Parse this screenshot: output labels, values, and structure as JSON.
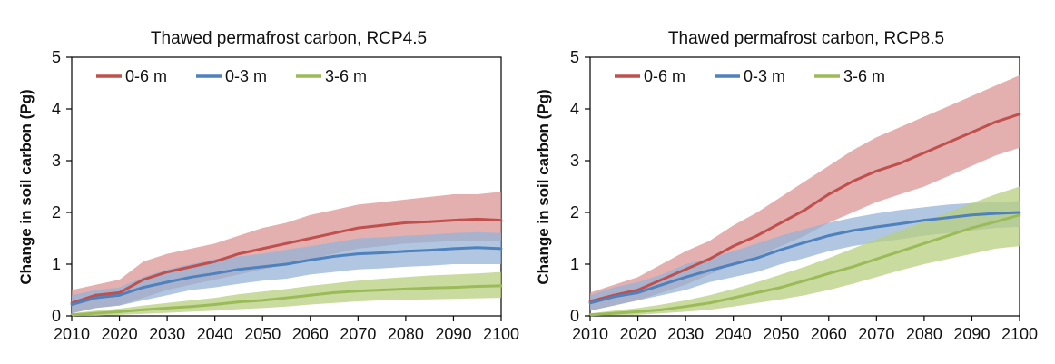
{
  "chart_data": [
    {
      "type": "line",
      "title": "Thawed permafrost carbon, RCP4.5",
      "xlabel": "",
      "ylabel": "Change in soil carbon (Pg)",
      "xlim": [
        2010,
        2100
      ],
      "ylim": [
        0,
        5
      ],
      "xticks": [
        "2010",
        "2020",
        "2030",
        "2040",
        "2050",
        "2060",
        "2070",
        "2080",
        "2090",
        "2100"
      ],
      "yticks": [
        "0",
        "1",
        "2",
        "3",
        "4",
        "5"
      ],
      "grid": false,
      "legend_position": "top-left",
      "series": [
        {
          "name": "0-6 m",
          "color": "#c0504d",
          "band_color": "#d99594",
          "x": [
            2010,
            2015,
            2020,
            2025,
            2030,
            2035,
            2040,
            2045,
            2050,
            2055,
            2060,
            2065,
            2070,
            2075,
            2080,
            2085,
            2090,
            2095,
            2100
          ],
          "values": [
            0.25,
            0.4,
            0.45,
            0.7,
            0.85,
            0.95,
            1.05,
            1.2,
            1.3,
            1.4,
            1.5,
            1.6,
            1.7,
            1.75,
            1.8,
            1.82,
            1.85,
            1.87,
            1.85
          ],
          "lower": [
            0.05,
            0.15,
            0.2,
            0.35,
            0.5,
            0.6,
            0.7,
            0.8,
            0.9,
            1.0,
            1.1,
            1.2,
            1.3,
            1.35,
            1.4,
            1.42,
            1.45,
            1.45,
            1.45
          ],
          "upper": [
            0.5,
            0.6,
            0.7,
            1.05,
            1.2,
            1.3,
            1.4,
            1.55,
            1.7,
            1.8,
            1.95,
            2.05,
            2.15,
            2.2,
            2.25,
            2.3,
            2.35,
            2.35,
            2.4
          ]
        },
        {
          "name": "0-3 m",
          "color": "#4f81bd",
          "band_color": "#95b3d7",
          "x": [
            2010,
            2015,
            2020,
            2025,
            2030,
            2035,
            2040,
            2045,
            2050,
            2055,
            2060,
            2065,
            2070,
            2075,
            2080,
            2085,
            2090,
            2095,
            2100
          ],
          "values": [
            0.22,
            0.35,
            0.4,
            0.55,
            0.65,
            0.75,
            0.82,
            0.9,
            0.95,
            1.0,
            1.08,
            1.15,
            1.2,
            1.22,
            1.25,
            1.27,
            1.3,
            1.32,
            1.3
          ],
          "lower": [
            0.05,
            0.15,
            0.2,
            0.3,
            0.4,
            0.5,
            0.55,
            0.62,
            0.68,
            0.72,
            0.8,
            0.85,
            0.9,
            0.92,
            0.95,
            0.97,
            1.0,
            1.0,
            1.0
          ],
          "upper": [
            0.4,
            0.5,
            0.55,
            0.75,
            0.9,
            1.0,
            1.1,
            1.15,
            1.2,
            1.28,
            1.35,
            1.42,
            1.5,
            1.52,
            1.55,
            1.57,
            1.6,
            1.62,
            1.6
          ]
        },
        {
          "name": "3-6 m",
          "color": "#9bbb59",
          "band_color": "#b8cf7f",
          "x": [
            2010,
            2015,
            2020,
            2025,
            2030,
            2035,
            2040,
            2045,
            2050,
            2055,
            2060,
            2065,
            2070,
            2075,
            2080,
            2085,
            2090,
            2095,
            2100
          ],
          "values": [
            0.02,
            0.05,
            0.08,
            0.12,
            0.15,
            0.18,
            0.22,
            0.27,
            0.3,
            0.35,
            0.4,
            0.45,
            0.48,
            0.5,
            0.52,
            0.54,
            0.55,
            0.57,
            0.58
          ],
          "lower": [
            0.0,
            0.0,
            0.02,
            0.04,
            0.06,
            0.08,
            0.1,
            0.13,
            0.15,
            0.18,
            0.22,
            0.25,
            0.28,
            0.3,
            0.31,
            0.32,
            0.33,
            0.34,
            0.35
          ],
          "upper": [
            0.05,
            0.1,
            0.14,
            0.2,
            0.25,
            0.3,
            0.35,
            0.42,
            0.47,
            0.52,
            0.58,
            0.63,
            0.68,
            0.72,
            0.75,
            0.78,
            0.8,
            0.82,
            0.85
          ]
        }
      ]
    },
    {
      "type": "line",
      "title": "Thawed permafrost carbon, RCP8.5",
      "xlabel": "",
      "ylabel": "Change in soil carbon (Pg)",
      "xlim": [
        2010,
        2100
      ],
      "ylim": [
        0,
        5
      ],
      "xticks": [
        "2010",
        "2020",
        "2030",
        "2040",
        "2050",
        "2060",
        "2070",
        "2080",
        "2090",
        "2100"
      ],
      "yticks": [
        "0",
        "1",
        "2",
        "3",
        "4",
        "5"
      ],
      "grid": false,
      "legend_position": "top-left",
      "series": [
        {
          "name": "0-6 m",
          "color": "#c0504d",
          "band_color": "#d99594",
          "x": [
            2010,
            2015,
            2020,
            2025,
            2030,
            2035,
            2040,
            2045,
            2050,
            2055,
            2060,
            2065,
            2070,
            2075,
            2080,
            2085,
            2090,
            2095,
            2100
          ],
          "values": [
            0.28,
            0.4,
            0.5,
            0.7,
            0.9,
            1.1,
            1.35,
            1.55,
            1.8,
            2.05,
            2.35,
            2.6,
            2.8,
            2.95,
            3.15,
            3.35,
            3.55,
            3.75,
            3.9
          ],
          "lower": [
            0.1,
            0.2,
            0.3,
            0.45,
            0.6,
            0.8,
            1.0,
            1.15,
            1.35,
            1.55,
            1.8,
            2.0,
            2.2,
            2.35,
            2.5,
            2.7,
            2.9,
            3.1,
            3.25
          ],
          "upper": [
            0.45,
            0.6,
            0.75,
            1.0,
            1.25,
            1.45,
            1.75,
            2.0,
            2.3,
            2.6,
            2.9,
            3.2,
            3.45,
            3.65,
            3.85,
            4.05,
            4.25,
            4.45,
            4.65
          ]
        },
        {
          "name": "0-3 m",
          "color": "#4f81bd",
          "band_color": "#95b3d7",
          "x": [
            2010,
            2015,
            2020,
            2025,
            2030,
            2035,
            2040,
            2045,
            2050,
            2055,
            2060,
            2065,
            2070,
            2075,
            2080,
            2085,
            2090,
            2095,
            2100
          ],
          "values": [
            0.25,
            0.37,
            0.45,
            0.6,
            0.75,
            0.88,
            1.0,
            1.12,
            1.28,
            1.42,
            1.55,
            1.65,
            1.72,
            1.78,
            1.85,
            1.9,
            1.95,
            1.98,
            2.0
          ],
          "lower": [
            0.1,
            0.2,
            0.3,
            0.4,
            0.5,
            0.65,
            0.75,
            0.85,
            1.0,
            1.12,
            1.25,
            1.35,
            1.42,
            1.48,
            1.55,
            1.6,
            1.65,
            1.7,
            1.72
          ],
          "upper": [
            0.4,
            0.55,
            0.65,
            0.8,
            1.0,
            1.12,
            1.25,
            1.4,
            1.55,
            1.68,
            1.8,
            1.9,
            1.98,
            2.05,
            2.1,
            2.15,
            2.18,
            2.2,
            2.22
          ]
        },
        {
          "name": "3-6 m",
          "color": "#9bbb59",
          "band_color": "#b8cf7f",
          "x": [
            2010,
            2015,
            2020,
            2025,
            2030,
            2035,
            2040,
            2045,
            2050,
            2055,
            2060,
            2065,
            2070,
            2075,
            2080,
            2085,
            2090,
            2095,
            2100
          ],
          "values": [
            0.02,
            0.05,
            0.08,
            0.12,
            0.18,
            0.25,
            0.35,
            0.45,
            0.55,
            0.68,
            0.82,
            0.95,
            1.1,
            1.25,
            1.4,
            1.55,
            1.7,
            1.82,
            1.95
          ],
          "lower": [
            0.0,
            0.01,
            0.02,
            0.05,
            0.08,
            0.12,
            0.18,
            0.25,
            0.32,
            0.4,
            0.5,
            0.62,
            0.75,
            0.88,
            1.0,
            1.1,
            1.2,
            1.3,
            1.35
          ],
          "upper": [
            0.05,
            0.1,
            0.15,
            0.22,
            0.3,
            0.4,
            0.52,
            0.65,
            0.8,
            0.95,
            1.12,
            1.3,
            1.48,
            1.65,
            1.82,
            2.0,
            2.18,
            2.35,
            2.5
          ]
        }
      ]
    }
  ]
}
